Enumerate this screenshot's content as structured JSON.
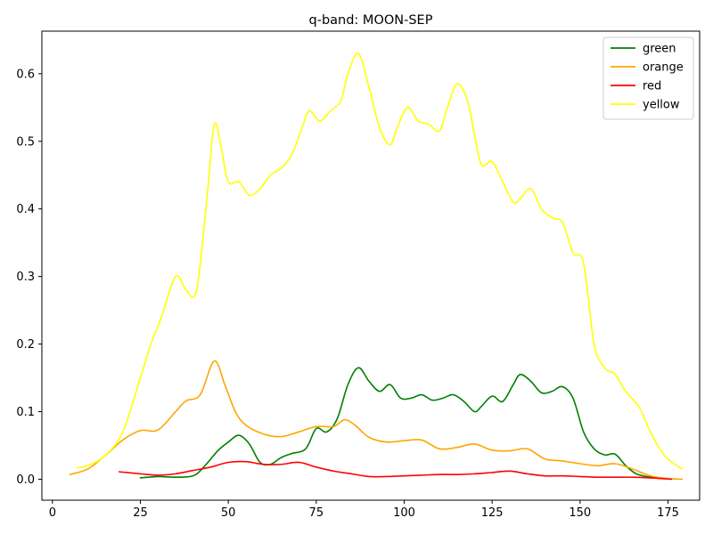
{
  "chart_data": {
    "type": "line",
    "title": "q-band: MOON-SEP",
    "xlabel": "",
    "ylabel": "",
    "xlim": [
      -3,
      184
    ],
    "ylim": [
      -0.031,
      0.663
    ],
    "x_ticks": [
      0,
      25,
      50,
      75,
      100,
      125,
      150,
      175
    ],
    "y_ticks": [
      0.0,
      0.1,
      0.2,
      0.3,
      0.4,
      0.5,
      0.6
    ],
    "x_tick_labels": [
      "0",
      "25",
      "50",
      "75",
      "100",
      "125",
      "150",
      "175"
    ],
    "y_tick_labels": [
      "0.0",
      "0.1",
      "0.2",
      "0.3",
      "0.4",
      "0.5",
      "0.6"
    ],
    "grid": false,
    "legend_position": "upper right",
    "series": [
      {
        "name": "green",
        "color": "#008000",
        "x": [
          25,
          30,
          35,
          40,
          43,
          47,
          50,
          53,
          56,
          59,
          62,
          65,
          68,
          72,
          75,
          78,
          81,
          84,
          87,
          90,
          93,
          96,
          99,
          102,
          105,
          108,
          111,
          114,
          117,
          120,
          122,
          125,
          128,
          131,
          133,
          136,
          139,
          142,
          145,
          148,
          151,
          154,
          157,
          160,
          163,
          166,
          170,
          175
        ],
        "y": [
          0.002,
          0.004,
          0.003,
          0.005,
          0.018,
          0.042,
          0.055,
          0.065,
          0.052,
          0.025,
          0.022,
          0.032,
          0.038,
          0.045,
          0.075,
          0.07,
          0.09,
          0.14,
          0.165,
          0.145,
          0.13,
          0.14,
          0.12,
          0.12,
          0.125,
          0.117,
          0.12,
          0.125,
          0.115,
          0.1,
          0.108,
          0.123,
          0.115,
          0.14,
          0.155,
          0.145,
          0.128,
          0.13,
          0.137,
          0.12,
          0.07,
          0.045,
          0.036,
          0.037,
          0.02,
          0.008,
          0.003,
          0.001
        ]
      },
      {
        "name": "orange",
        "color": "#ffa500",
        "x": [
          5,
          10,
          15,
          20,
          25,
          30,
          35,
          38,
          42,
          46,
          49,
          52,
          55,
          60,
          65,
          70,
          75,
          80,
          83,
          86,
          90,
          95,
          100,
          105,
          110,
          115,
          120,
          125,
          130,
          135,
          140,
          145,
          150,
          155,
          160,
          165,
          170,
          175,
          179
        ],
        "y": [
          0.007,
          0.015,
          0.035,
          0.058,
          0.072,
          0.073,
          0.1,
          0.116,
          0.125,
          0.175,
          0.14,
          0.1,
          0.08,
          0.067,
          0.063,
          0.07,
          0.078,
          0.078,
          0.088,
          0.08,
          0.062,
          0.055,
          0.057,
          0.058,
          0.045,
          0.047,
          0.052,
          0.043,
          0.042,
          0.045,
          0.03,
          0.027,
          0.023,
          0.02,
          0.023,
          0.015,
          0.005,
          0.001,
          0.0
        ]
      },
      {
        "name": "red",
        "color": "#ff0000",
        "x": [
          19,
          25,
          30,
          35,
          40,
          45,
          50,
          55,
          60,
          65,
          70,
          75,
          80,
          85,
          90,
          95,
          100,
          105,
          110,
          115,
          120,
          125,
          130,
          135,
          140,
          145,
          150,
          155,
          160,
          165,
          170,
          176
        ],
        "y": [
          0.011,
          0.008,
          0.006,
          0.008,
          0.013,
          0.018,
          0.025,
          0.026,
          0.022,
          0.022,
          0.025,
          0.018,
          0.012,
          0.008,
          0.004,
          0.004,
          0.005,
          0.006,
          0.007,
          0.007,
          0.008,
          0.01,
          0.012,
          0.008,
          0.005,
          0.005,
          0.004,
          0.003,
          0.003,
          0.003,
          0.002,
          0.0
        ]
      },
      {
        "name": "yellow",
        "color": "#ffff00",
        "x": [
          7,
          10,
          15,
          20,
          25,
          28,
          31,
          35,
          38,
          41,
          44,
          46,
          48,
          50,
          53,
          56,
          59,
          62,
          65,
          68,
          71,
          73,
          76,
          79,
          82,
          84,
          87,
          90,
          93,
          96,
          98,
          101,
          104,
          107,
          110,
          112,
          115,
          118,
          120,
          122,
          125,
          128,
          131,
          133,
          136,
          139,
          142,
          145,
          148,
          151,
          154,
          157,
          160,
          163,
          167,
          170,
          174,
          179
        ],
        "y": [
          0.017,
          0.02,
          0.035,
          0.07,
          0.15,
          0.2,
          0.24,
          0.3,
          0.28,
          0.28,
          0.42,
          0.525,
          0.49,
          0.44,
          0.44,
          0.42,
          0.43,
          0.45,
          0.46,
          0.48,
          0.52,
          0.545,
          0.53,
          0.545,
          0.56,
          0.6,
          0.63,
          0.58,
          0.52,
          0.495,
          0.52,
          0.55,
          0.53,
          0.525,
          0.515,
          0.545,
          0.585,
          0.56,
          0.51,
          0.465,
          0.47,
          0.44,
          0.41,
          0.415,
          0.43,
          0.4,
          0.387,
          0.38,
          0.335,
          0.32,
          0.2,
          0.165,
          0.155,
          0.13,
          0.105,
          0.07,
          0.035,
          0.015
        ]
      }
    ]
  }
}
